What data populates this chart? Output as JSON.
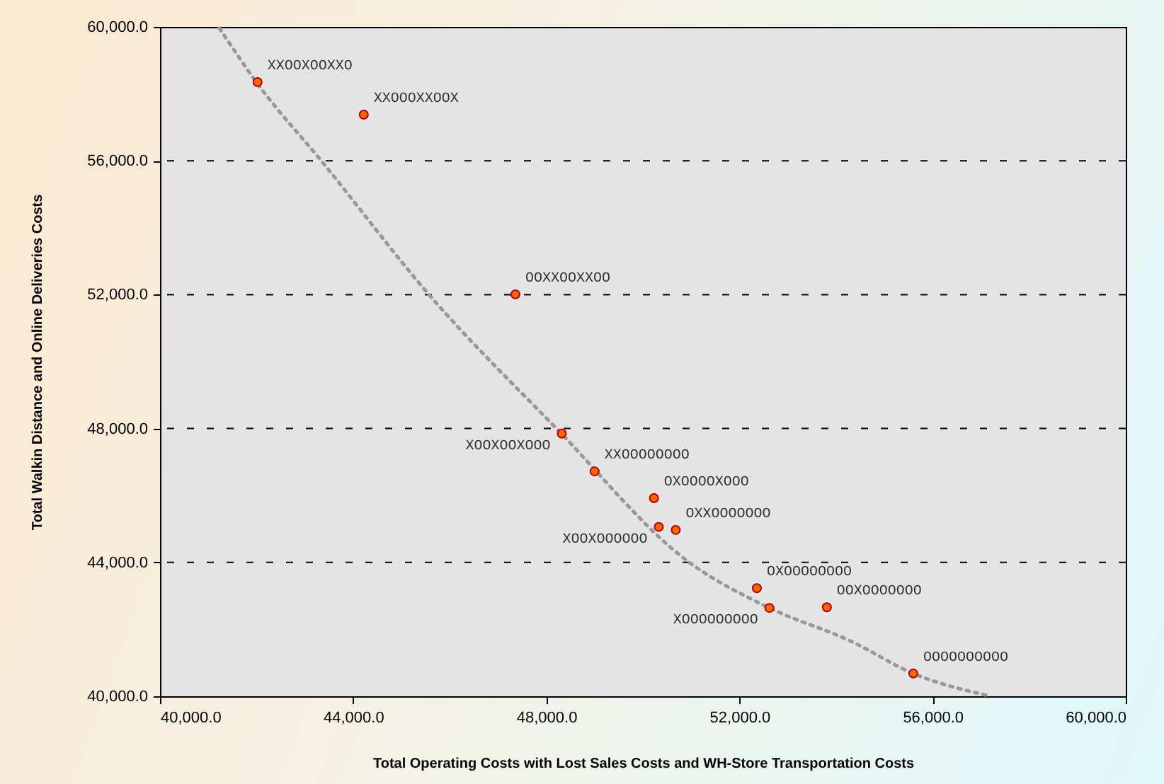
{
  "chart_data": {
    "type": "scatter",
    "xlabel": "Total Operating Costs with Lost Sales Costs and WH-Store Transportation Costs",
    "ylabel": "Total Walkin Distance and Online Deliveries Costs",
    "xlim": [
      40000,
      60000
    ],
    "ylim": [
      40000,
      60000
    ],
    "xticks": [
      {
        "value": 40000,
        "label": "40,000.0"
      },
      {
        "value": 44000,
        "label": "44,000.0"
      },
      {
        "value": 48000,
        "label": "48,000.0"
      },
      {
        "value": 52000,
        "label": "52,000.0"
      },
      {
        "value": 56000,
        "label": "56,000.0"
      },
      {
        "value": 60000,
        "label": "60,000.0"
      }
    ],
    "yticks": [
      {
        "value": 40000,
        "label": "40,000.0"
      },
      {
        "value": 44000,
        "label": "44,000.0"
      },
      {
        "value": 48000,
        "label": "48,000.0"
      },
      {
        "value": 52000,
        "label": "52,000.0"
      },
      {
        "value": 56000,
        "label": "56,000.0"
      },
      {
        "value": 60000,
        "label": "60,000.0"
      }
    ],
    "grid": "y",
    "marker": "circle",
    "series": [
      {
        "color": "#ff6600",
        "x": [
          42020,
          44220,
          47360,
          48320,
          49000,
          50230,
          50330,
          50680,
          52360,
          52620,
          53810,
          55600
        ],
        "values": [
          58350,
          57380,
          52010,
          47850,
          46720,
          45920,
          45060,
          44970,
          43230,
          42640,
          42660,
          40680
        ]
      },
      {
        "type": "line",
        "color": "#999999",
        "line_style": "dotted",
        "marker": "none",
        "x": [
          41230,
          42020,
          43340,
          45570,
          48210,
          50960,
          52620,
          54300,
          55600,
          57210
        ],
        "values": [
          59960,
          58300,
          56000,
          52000,
          48000,
          44000,
          42640,
          41650,
          40680,
          40000
        ]
      }
    ],
    "annotations": [
      {
        "text": "XXOOXOOXXO",
        "x": 42020,
        "y": 58350
      },
      {
        "text": "XXOOOXXOOX",
        "x": 44220,
        "y": 57380
      },
      {
        "text": "OOXXOOXXOO",
        "x": 47360,
        "y": 52010
      },
      {
        "text": "XOOXOOXOOO",
        "x": 48320,
        "y": 47850
      },
      {
        "text": "XXOOOOOOOO",
        "x": 49000,
        "y": 46720
      },
      {
        "text": "OXOOOOXOOO",
        "x": 50230,
        "y": 45920
      },
      {
        "text": "XOOXOOOOOO",
        "x": 50330,
        "y": 45060
      },
      {
        "text": "OXXOOOOOOO",
        "x": 50680,
        "y": 44970
      },
      {
        "text": "OXOOOOOOOO",
        "x": 52360,
        "y": 43230
      },
      {
        "text": "XOOOOOOOOO",
        "x": 52620,
        "y": 42640
      },
      {
        "text": "OOXOOOOOOO",
        "x": 53810,
        "y": 42660
      },
      {
        "text": "OOOOOOOOOO",
        "x": 55600,
        "y": 40680
      }
    ]
  }
}
